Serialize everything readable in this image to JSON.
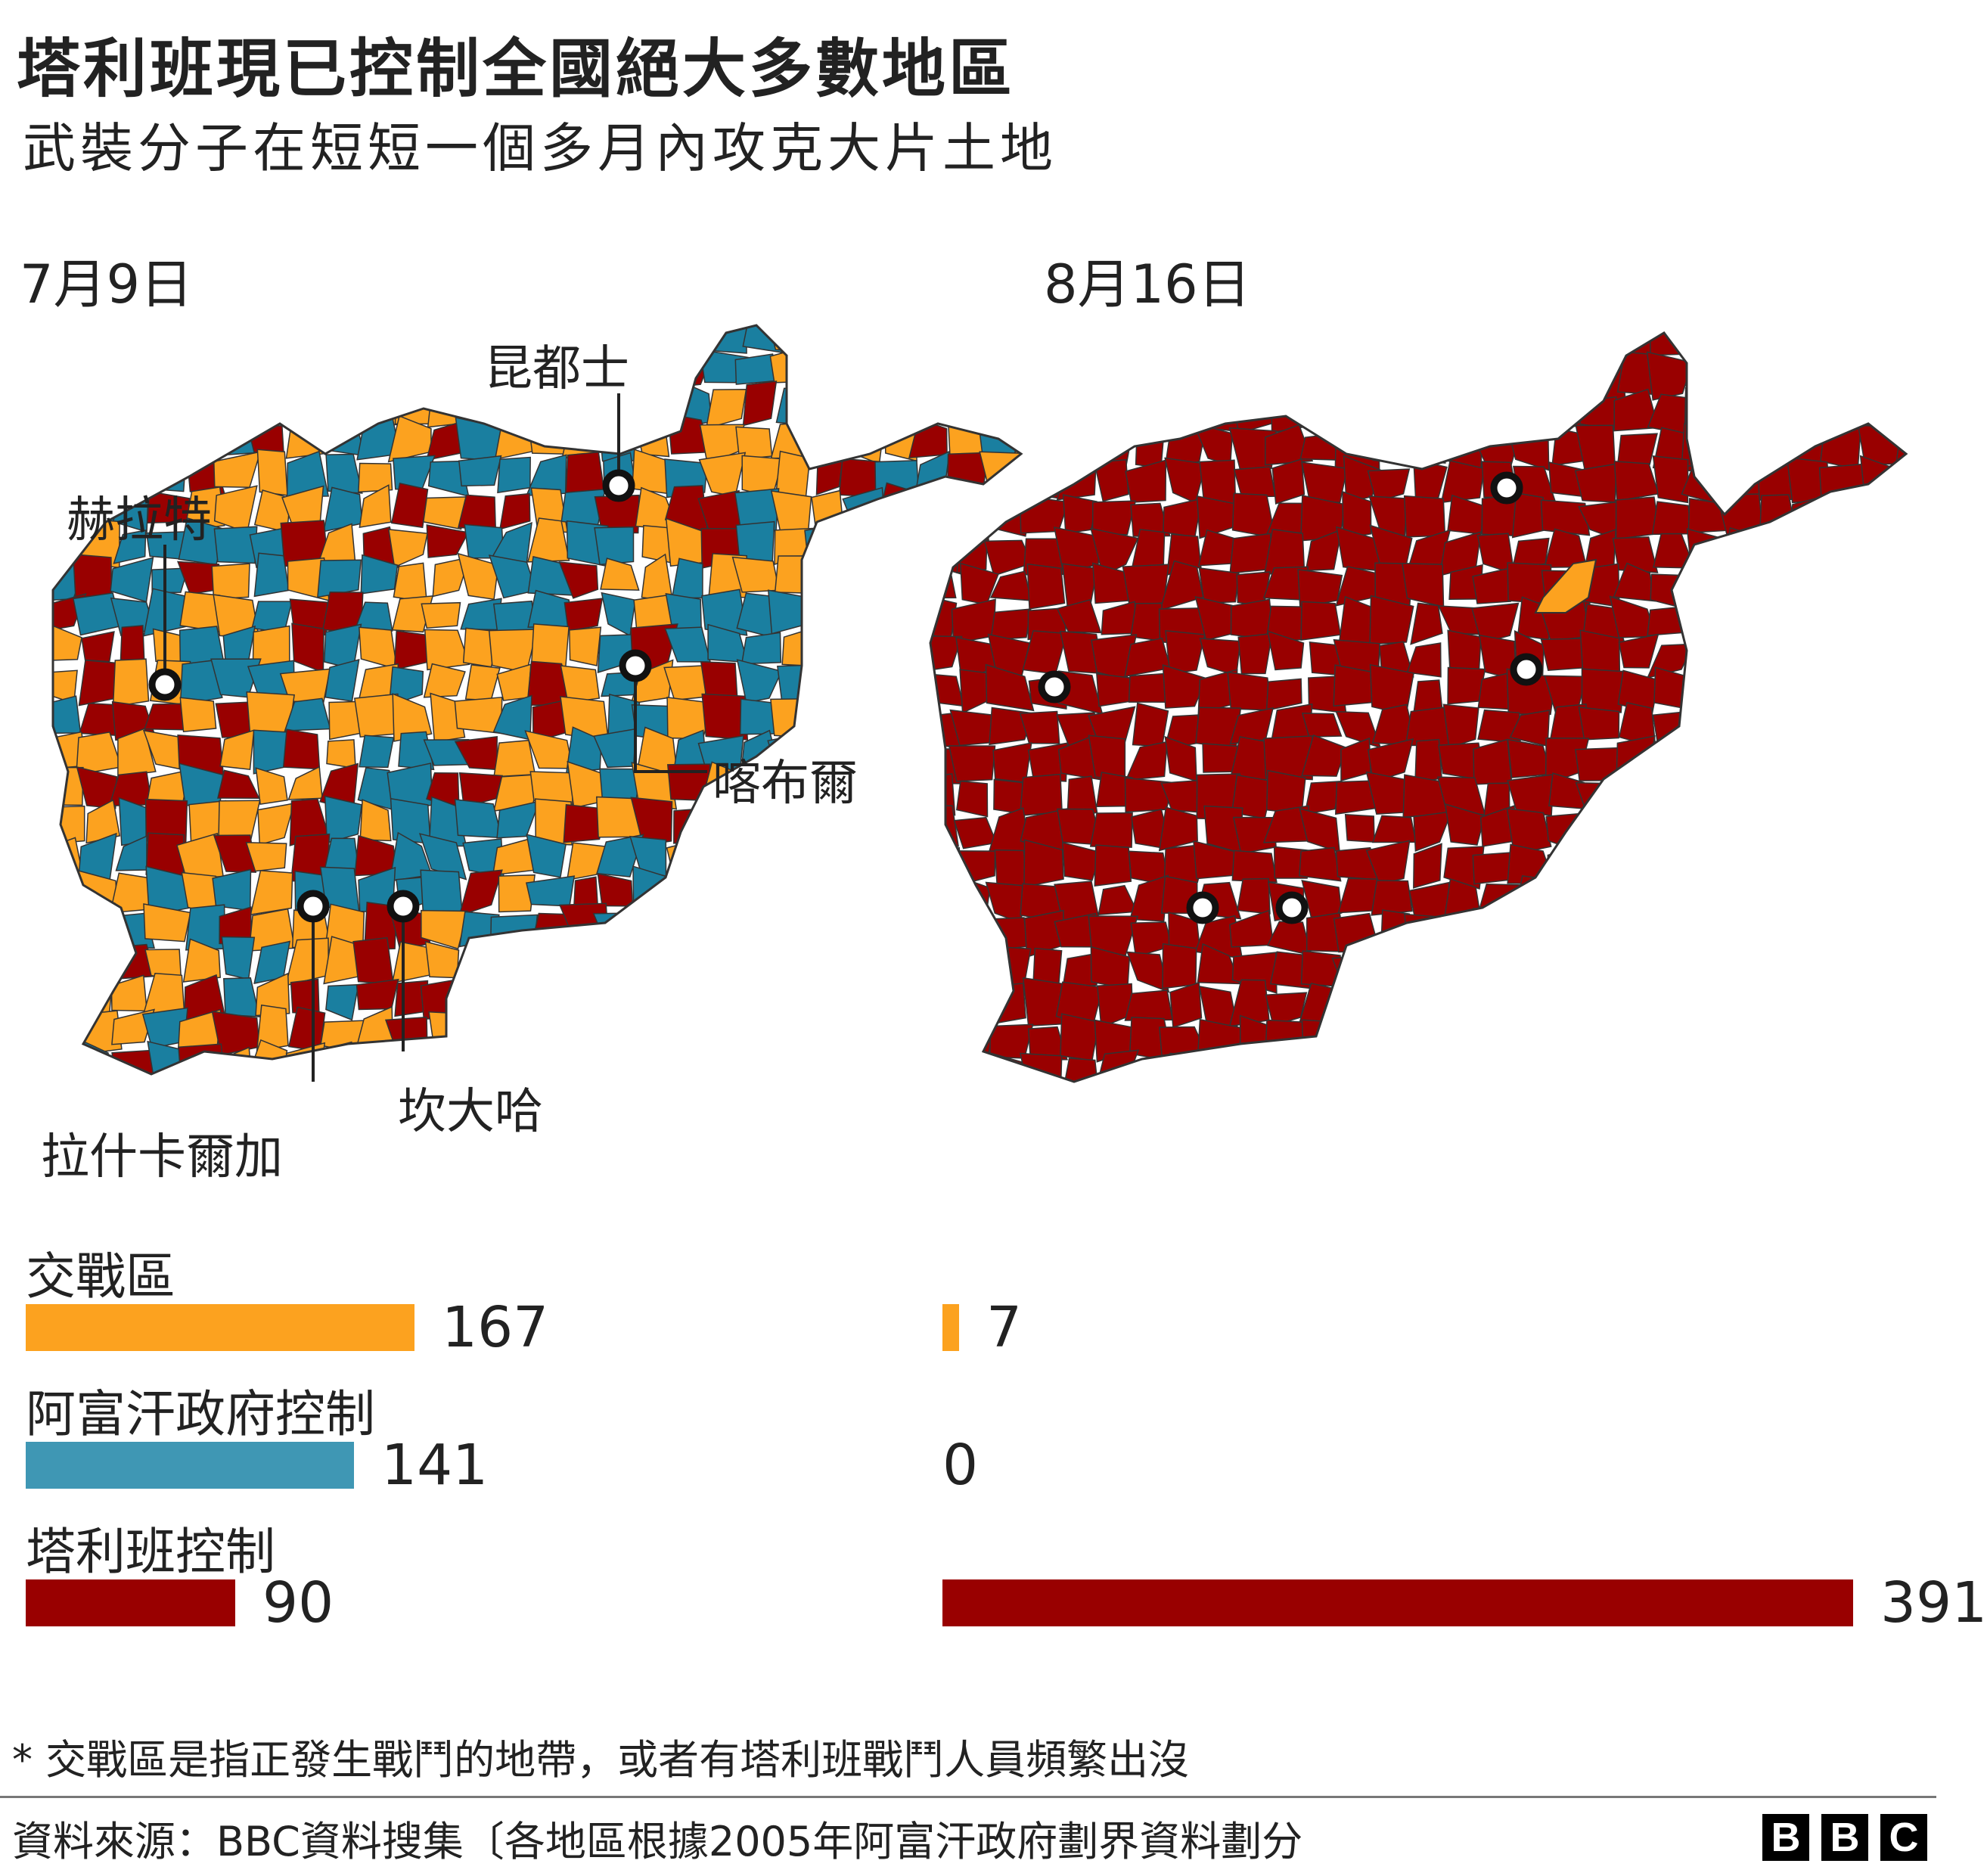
{
  "title": "塔利班現已控制全國絕大多數地區",
  "subtitle": "武裝分子在短短一個多月內攻克大片土地",
  "maps": [
    {
      "date": "7月9日"
    },
    {
      "date": "8月16日"
    }
  ],
  "cities": [
    {
      "label": "昆都士"
    },
    {
      "label": "赫拉特"
    },
    {
      "label": "喀布爾"
    },
    {
      "label": "拉什卡爾加"
    },
    {
      "label": "坎大哈"
    }
  ],
  "colors": {
    "contested": "#fca21f",
    "government": "#1a7fa0",
    "government_bar": "#3f97b4",
    "taliban": "#990000",
    "border": "#333333"
  },
  "legend": [
    {
      "label": "交戰區",
      "key": "contested"
    },
    {
      "label": "阿富汗政府控制",
      "key": "government"
    },
    {
      "label": "塔利班控制",
      "key": "taliban"
    }
  ],
  "chart_data": {
    "type": "bar",
    "categories": [
      "交戰區",
      "阿富汗政府控制",
      "塔利班控制"
    ],
    "series": [
      {
        "name": "7月9日",
        "values": [
          167,
          141,
          90
        ]
      },
      {
        "name": "8月16日",
        "values": [
          7,
          0,
          391
        ]
      }
    ]
  },
  "footnote": "* 交戰區是指正發生戰鬥的地帶，或者有塔利班戰鬥人員頻繁出沒",
  "source": "資料來源：BBC資料搜集〔各地區根據2005年阿富汗政府劃界資料劃分",
  "logo": [
    "B",
    "B",
    "C"
  ]
}
